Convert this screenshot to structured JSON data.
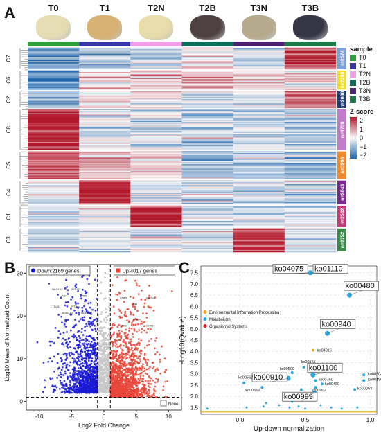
{
  "panels": {
    "a": "A",
    "b": "B",
    "c": "C"
  },
  "samples": [
    {
      "label": "T0",
      "color": "#2e9e3a",
      "photo": "#e6dcb4"
    },
    {
      "label": "T1",
      "color": "#3636a8",
      "photo": "#d8b274"
    },
    {
      "label": "T2N",
      "color": "#f2a0e6",
      "photo": "#e8dcaa"
    },
    {
      "label": "T2B",
      "color": "#0f6e5a",
      "photo": "#4d4040"
    },
    {
      "label": "T3N",
      "color": "#4a2270",
      "photo": "#b6aa8c"
    },
    {
      "label": "T3B",
      "color": "#1c7a46",
      "photo": "#363646"
    }
  ],
  "heatmap": {
    "clusters": [
      {
        "name": "C7",
        "n": "n=2574",
        "bar_color": "#7fa0d8",
        "pattern": [
          -1.2,
          -0.6,
          -0.4,
          0.1,
          -0.3,
          1.6
        ]
      },
      {
        "name": "C6",
        "n": "n=2298",
        "bar_color": "#f0dc2a",
        "pattern": [
          -1.6,
          0.4,
          0.3,
          0.5,
          0.3,
          0.3
        ]
      },
      {
        "name": "C2",
        "n": "n=2088",
        "bar_color": "#1f3c7a",
        "pattern": [
          -1.0,
          0.3,
          0.1,
          -0.3,
          -0.2,
          1.2
        ]
      },
      {
        "name": "C8",
        "n": "n=4739",
        "bar_color": "#c07ac8",
        "pattern": [
          2.0,
          -0.3,
          -0.3,
          -0.5,
          -0.5,
          -0.5
        ]
      },
      {
        "name": "C5",
        "n": "n=3296",
        "bar_color": "#f08a30",
        "pattern": [
          1.2,
          0.6,
          0.3,
          -0.9,
          -0.5,
          -0.8
        ]
      },
      {
        "name": "C4",
        "n": "n=2843",
        "bar_color": "#7a2a8a",
        "pattern": [
          -0.3,
          1.9,
          -0.3,
          -0.4,
          -0.4,
          -0.5
        ]
      },
      {
        "name": "C1",
        "n": "n=2562",
        "bar_color": "#c23a7a",
        "pattern": [
          -0.5,
          0.0,
          1.9,
          -0.3,
          -0.4,
          -0.4
        ]
      },
      {
        "name": "C3",
        "n": "n=2752",
        "bar_color": "#3a8a4a",
        "pattern": [
          -0.5,
          -0.3,
          -0.3,
          -0.3,
          1.8,
          -0.4
        ]
      }
    ],
    "legend": {
      "sample_title": "sample",
      "zscore_title": "Z-score",
      "zscore_ticks": [
        "2",
        "1",
        "0",
        "−1",
        "−2"
      ],
      "colors": {
        "high": "#b2182b",
        "mid": "#f7f7f7",
        "low": "#2166ac"
      }
    }
  },
  "volcano": {
    "down_label": "Down:2169 genes",
    "up_label": "Up:4017 genes",
    "none_label": "None",
    "xlabel": "Log2 Fold Change",
    "ylabel": "Log10 Mean of Normalized Count",
    "xticks": [
      "-10",
      "-5",
      "0",
      "5",
      "10"
    ],
    "yticks": [
      "0",
      "10",
      "20",
      "30"
    ],
    "colors": {
      "down": "#1a1ad6",
      "up": "#e8463a",
      "none": "#c8c8c8"
    },
    "down_genes": [
      "BAGL12",
      "AS4",
      "BGU12",
      "WBI",
      "TSLI1",
      "BGLU10",
      "PTRA4",
      "BGLU20"
    ],
    "up_genes": [
      "FTA3",
      "NH",
      "HSP14",
      "COI2",
      "GOL4",
      "GH05"
    ]
  },
  "chart_data": {
    "type": "scatter",
    "xlabel": "Up-down normalization",
    "ylabel": "-Log10(Qvalue)",
    "xlim": [
      -0.3,
      1.05
    ],
    "ylim": [
      1.2,
      7.8
    ],
    "xticks": [
      "0.0",
      "0.5",
      "1.0"
    ],
    "yticks": [
      "1.5",
      "2.0",
      "2.5",
      "3.0",
      "3.5",
      "4.0",
      "4.5",
      "5.0",
      "5.5",
      "6.0",
      "6.5",
      "7.0",
      "7.5"
    ],
    "legend": [
      {
        "label": "Environmental Information Processing",
        "color": "#f0a020"
      },
      {
        "label": "Metabolism",
        "color": "#2aa8e0"
      },
      {
        "label": "Organismal Systems",
        "color": "#e02828"
      }
    ],
    "points": [
      {
        "label": "ko04075",
        "x": 0.54,
        "y": 7.5,
        "cat": "Environmental Information Processing",
        "boxed": true
      },
      {
        "label": "ko01110",
        "x": 0.54,
        "y": 7.5,
        "cat": "Metabolism",
        "boxed": true
      },
      {
        "label": "ko00480",
        "x": 0.84,
        "y": 6.5,
        "cat": "Metabolism",
        "boxed": true
      },
      {
        "label": "ko00940",
        "x": 0.67,
        "y": 4.8,
        "cat": "Metabolism",
        "boxed": true
      },
      {
        "label": "ko04016",
        "x": 0.56,
        "y": 4.05,
        "cat": "Environmental Information Processing",
        "boxed": false
      },
      {
        "label": "ko00565",
        "x": 0.49,
        "y": 3.3,
        "cat": "Metabolism",
        "boxed": false
      },
      {
        "label": "ko00500",
        "x": 0.4,
        "y": 3.05,
        "cat": "Metabolism",
        "boxed": false
      },
      {
        "label": "ko01100",
        "x": 0.56,
        "y": 2.95,
        "cat": "Metabolism",
        "boxed": true
      },
      {
        "label": "ko00910",
        "x": 0.37,
        "y": 2.8,
        "cat": "Metabolism",
        "boxed": true
      },
      {
        "label": "ko00562",
        "x": 0.03,
        "y": 2.6,
        "cat": "Metabolism",
        "boxed": false
      },
      {
        "label": "ko00562",
        "x": 0.17,
        "y": 2.4,
        "cat": "Metabolism",
        "boxed": false
      },
      {
        "label": "ko00760",
        "x": 0.58,
        "y": 2.7,
        "cat": "Metabolism",
        "boxed": false
      },
      {
        "label": "ko00460",
        "x": 0.63,
        "y": 2.55,
        "cat": "Metabolism",
        "boxed": false
      },
      {
        "label": "ko00902",
        "x": 0.58,
        "y": 2.4,
        "cat": "Metabolism",
        "boxed": false
      },
      {
        "label": "ko00380",
        "x": 0.47,
        "y": 2.3,
        "cat": "Metabolism",
        "boxed": false
      },
      {
        "label": "ko00999",
        "x": 0.57,
        "y": 2.15,
        "cat": "Metabolism",
        "boxed": true
      },
      {
        "label": "ko00908",
        "x": 0.95,
        "y": 2.95,
        "cat": "Metabolism",
        "boxed": false
      },
      {
        "label": "ko00196",
        "x": 0.95,
        "y": 2.7,
        "cat": "Metabolism",
        "boxed": false
      },
      {
        "label": "ko00053",
        "x": 0.88,
        "y": 2.3,
        "cat": "Metabolism",
        "boxed": false
      }
    ],
    "threshold_y": 1.3
  }
}
